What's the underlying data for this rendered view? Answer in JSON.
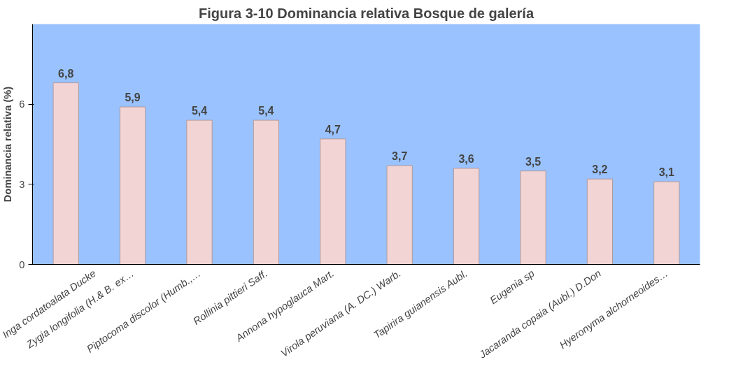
{
  "chart_data": {
    "type": "bar",
    "title": "Figura 3-10 Dominancia relativa Bosque de galería",
    "ylabel": "Dominancia relativa (%)",
    "categories": [
      "Inga cordatoalata Ducke",
      "Zygia longifolia (H.& B. ex…",
      "Piptocoma discolor (Humb.,…",
      "Rollinia pittieri Saff.",
      "Annona hypoglauca Mart.",
      "Virola peruviana (A. DC.) Warb.",
      "Tapirira guianensis Aubl.",
      "Eugenia sp",
      "Jacaranda copaia (Aubl.) D.Don",
      "Hyeronyma alchorneoides…"
    ],
    "values": [
      6.8,
      5.9,
      5.4,
      5.4,
      4.7,
      3.7,
      3.6,
      3.5,
      3.2,
      3.1
    ],
    "value_labels": [
      "6,8",
      "5,9",
      "5,4",
      "5,4",
      "4,7",
      "3,7",
      "3,6",
      "3,5",
      "3,2",
      "3,1"
    ],
    "color": "#f2d4d4",
    "ylim": [
      0,
      9
    ],
    "yticks": [
      0,
      3,
      6
    ],
    "grid": false
  }
}
